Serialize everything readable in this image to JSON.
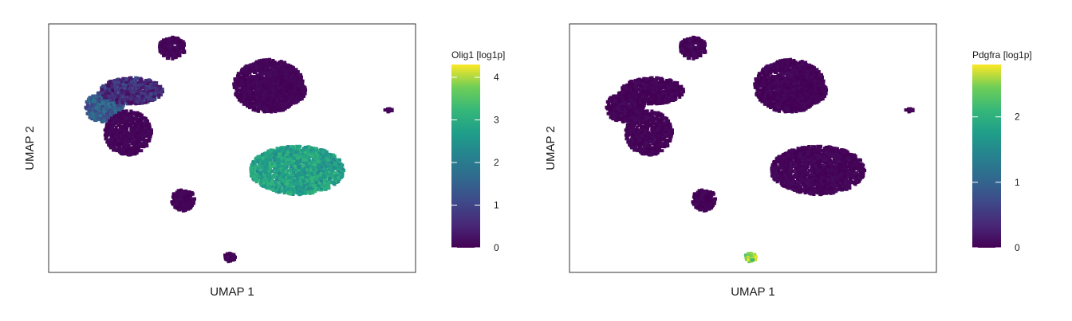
{
  "chart_data": [
    {
      "type": "scatter",
      "xlabel": "UMAP 1",
      "ylabel": "UMAP 2",
      "colorbar": {
        "title": "Olig1 [log1p]",
        "min": 0,
        "max": 4.3,
        "ticks": [
          "0",
          "1",
          "2",
          "3",
          "4"
        ],
        "tick_values": [
          0,
          1,
          2,
          3,
          4
        ],
        "palette": "viridis"
      },
      "clusters": [
        {
          "x": 0.6,
          "y": 0.4,
          "rx": 0.09,
          "ry": 0.12,
          "value": 0.05
        },
        {
          "x": 0.71,
          "y": 0.33,
          "rx": 0.06,
          "ry": 0.07,
          "value": 0.05
        },
        {
          "x": 0.83,
          "y": -0.82,
          "rx": 0.12,
          "ry": 0.11,
          "value": 2.45
        },
        {
          "x": -0.74,
          "y": 0.09,
          "rx": 0.05,
          "ry": 0.07,
          "value": 1.25
        },
        {
          "x": -0.52,
          "y": 0.33,
          "rx": 0.08,
          "ry": 0.06,
          "value": 0.55
        },
        {
          "x": -0.55,
          "y": -0.28,
          "rx": 0.06,
          "ry": 0.1,
          "value": 0.05
        },
        {
          "x": -0.19,
          "y": 0.95,
          "rx": 0.035,
          "ry": 0.05,
          "value": 0.05
        },
        {
          "x": -0.1,
          "y": -1.25,
          "rx": 0.03,
          "ry": 0.05,
          "value": 0.05
        },
        {
          "x": 0.28,
          "y": -2.08,
          "rx": 0.015,
          "ry": 0.02,
          "value": 0.05
        },
        {
          "x": 1.58,
          "y": 0.05,
          "rx": 0.01,
          "ry": 0.01,
          "value": 0.05
        }
      ]
    },
    {
      "type": "scatter",
      "xlabel": "UMAP 1",
      "ylabel": "UMAP 2",
      "colorbar": {
        "title": "Pdgfra [log1p]",
        "min": 0,
        "max": 2.8,
        "ticks": [
          "0",
          "1",
          "2"
        ],
        "tick_values": [
          0,
          1,
          2
        ],
        "palette": "viridis"
      },
      "clusters": [
        {
          "x": 0.6,
          "y": 0.4,
          "rx": 0.09,
          "ry": 0.12,
          "value": 0.02
        },
        {
          "x": 0.71,
          "y": 0.33,
          "rx": 0.06,
          "ry": 0.07,
          "value": 0.02
        },
        {
          "x": 0.83,
          "y": -0.82,
          "rx": 0.12,
          "ry": 0.11,
          "value": 0.03
        },
        {
          "x": -0.74,
          "y": 0.09,
          "rx": 0.05,
          "ry": 0.07,
          "value": 0.02
        },
        {
          "x": -0.52,
          "y": 0.33,
          "rx": 0.08,
          "ry": 0.06,
          "value": 0.02
        },
        {
          "x": -0.55,
          "y": -0.28,
          "rx": 0.06,
          "ry": 0.1,
          "value": 0.02
        },
        {
          "x": -0.19,
          "y": 0.95,
          "rx": 0.035,
          "ry": 0.05,
          "value": 0.02
        },
        {
          "x": -0.1,
          "y": -1.25,
          "rx": 0.03,
          "ry": 0.05,
          "value": 0.02
        },
        {
          "x": 0.28,
          "y": -2.08,
          "rx": 0.015,
          "ry": 0.02,
          "value": 2.3
        },
        {
          "x": 1.58,
          "y": 0.05,
          "rx": 0.01,
          "ry": 0.01,
          "value": 0.02
        }
      ]
    }
  ]
}
